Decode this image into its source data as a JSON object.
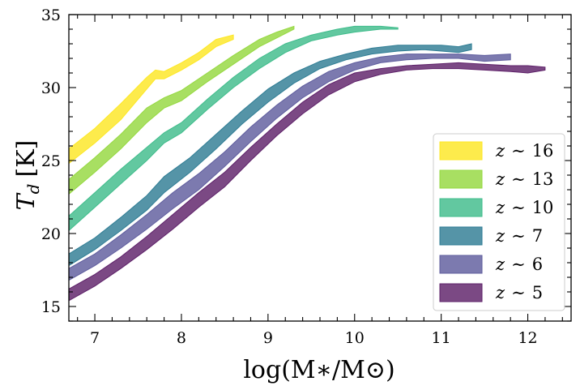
{
  "chart_data": {
    "type": "area",
    "xlabel": "log(M∗/M⊙)",
    "ylabel_main": "T",
    "ylabel_sub": "d",
    "ylabel_unit": "[K]",
    "xlim": [
      6.7,
      12.5
    ],
    "ylim": [
      14,
      35
    ],
    "x_ticks": [
      7,
      8,
      9,
      10,
      11,
      12
    ],
    "y_ticks": [
      15,
      20,
      25,
      30,
      35
    ],
    "grid": false,
    "legend_position": "lower-right",
    "series": [
      {
        "name": "z ∼ 16",
        "label_var": "z",
        "label_op": "∼",
        "label_val": "16",
        "color": "#fde725",
        "x": [
          6.7,
          7.0,
          7.3,
          7.6,
          7.7,
          7.8,
          8.0,
          8.2,
          8.4,
          8.6
        ],
        "lower": [
          24.8,
          26.2,
          27.8,
          29.9,
          30.6,
          30.6,
          31.2,
          31.9,
          32.8,
          33.3
        ],
        "upper": [
          25.8,
          27.2,
          28.9,
          30.7,
          31.2,
          31.1,
          31.7,
          32.4,
          33.3,
          33.6
        ]
      },
      {
        "name": "z ∼ 13",
        "label_var": "z",
        "label_op": "∼",
        "label_val": "13",
        "color": "#95d840",
        "x": [
          6.7,
          7.0,
          7.3,
          7.6,
          7.8,
          8.0,
          8.3,
          8.6,
          8.9,
          9.1,
          9.3
        ],
        "lower": [
          22.7,
          24.2,
          25.8,
          27.6,
          28.6,
          29.1,
          30.4,
          31.6,
          32.8,
          33.4,
          34.0
        ],
        "upper": [
          23.7,
          25.2,
          26.8,
          28.6,
          29.3,
          29.8,
          31.0,
          32.2,
          33.3,
          33.8,
          34.2
        ]
      },
      {
        "name": "z ∼ 10",
        "label_var": "z",
        "label_op": "∼",
        "label_val": "10",
        "color": "#3fbc8b",
        "x": [
          6.7,
          7.0,
          7.3,
          7.6,
          7.8,
          8.0,
          8.3,
          8.6,
          8.9,
          9.2,
          9.5,
          9.8,
          10.0,
          10.3,
          10.5
        ],
        "lower": [
          20.2,
          21.8,
          23.4,
          25.0,
          26.2,
          26.9,
          28.5,
          30.0,
          31.3,
          32.4,
          33.2,
          33.6,
          33.8,
          34.0,
          34.0
        ],
        "upper": [
          21.2,
          22.8,
          24.4,
          25.9,
          26.9,
          27.6,
          29.2,
          30.7,
          32.0,
          33.0,
          33.6,
          34.0,
          34.2,
          34.2,
          34.1
        ]
      },
      {
        "name": "z ∼ 7",
        "label_var": "z",
        "label_op": "∼",
        "label_val": "7",
        "color": "#2f7d94",
        "x": [
          6.7,
          7.0,
          7.3,
          7.6,
          7.8,
          8.1,
          8.4,
          8.7,
          9.0,
          9.3,
          9.6,
          9.9,
          10.2,
          10.5,
          10.8,
          11.0,
          11.2,
          11.35
        ],
        "lower": [
          17.8,
          18.9,
          20.2,
          21.6,
          22.8,
          24.2,
          25.8,
          27.5,
          29.0,
          30.3,
          31.3,
          31.9,
          32.3,
          32.5,
          32.6,
          32.5,
          32.4,
          32.6
        ],
        "upper": [
          18.6,
          19.7,
          21.1,
          22.6,
          23.9,
          25.2,
          26.8,
          28.4,
          29.9,
          31.0,
          31.8,
          32.3,
          32.7,
          32.9,
          32.9,
          32.9,
          32.8,
          33.0
        ]
      },
      {
        "name": "z ∼ 6",
        "label_var": "z",
        "label_op": "∼",
        "label_val": "6",
        "color": "#5f5d9e",
        "x": [
          6.7,
          7.0,
          7.3,
          7.6,
          7.9,
          8.2,
          8.5,
          8.8,
          9.1,
          9.4,
          9.7,
          10.0,
          10.3,
          10.6,
          10.9,
          11.2,
          11.5,
          11.8
        ],
        "lower": [
          16.8,
          17.8,
          19.0,
          20.3,
          21.7,
          23.0,
          24.6,
          26.3,
          27.9,
          29.3,
          30.4,
          31.2,
          31.7,
          31.9,
          32.0,
          32.0,
          31.8,
          31.9
        ],
        "upper": [
          17.6,
          18.6,
          19.9,
          21.3,
          22.8,
          24.1,
          25.6,
          27.3,
          28.8,
          30.1,
          31.1,
          31.7,
          32.1,
          32.3,
          32.3,
          32.3,
          32.2,
          32.3
        ]
      },
      {
        "name": "z ∼ 5",
        "label_var": "z",
        "label_op": "∼",
        "label_val": "5",
        "color": "#5e2169",
        "x": [
          6.7,
          7.0,
          7.3,
          7.6,
          7.9,
          8.2,
          8.5,
          8.8,
          9.1,
          9.4,
          9.7,
          10.0,
          10.3,
          10.6,
          10.9,
          11.2,
          11.5,
          11.8,
          12.0,
          12.2
        ],
        "lower": [
          15.4,
          16.4,
          17.6,
          18.9,
          20.3,
          21.8,
          23.2,
          25.0,
          26.7,
          28.2,
          29.5,
          30.4,
          30.9,
          31.2,
          31.3,
          31.3,
          31.2,
          31.1,
          31.0,
          31.2
        ],
        "upper": [
          16.2,
          17.2,
          18.4,
          19.8,
          21.3,
          22.8,
          24.2,
          25.9,
          27.5,
          29.0,
          30.2,
          31.0,
          31.3,
          31.5,
          31.6,
          31.7,
          31.6,
          31.5,
          31.5,
          31.4
        ]
      }
    ]
  }
}
